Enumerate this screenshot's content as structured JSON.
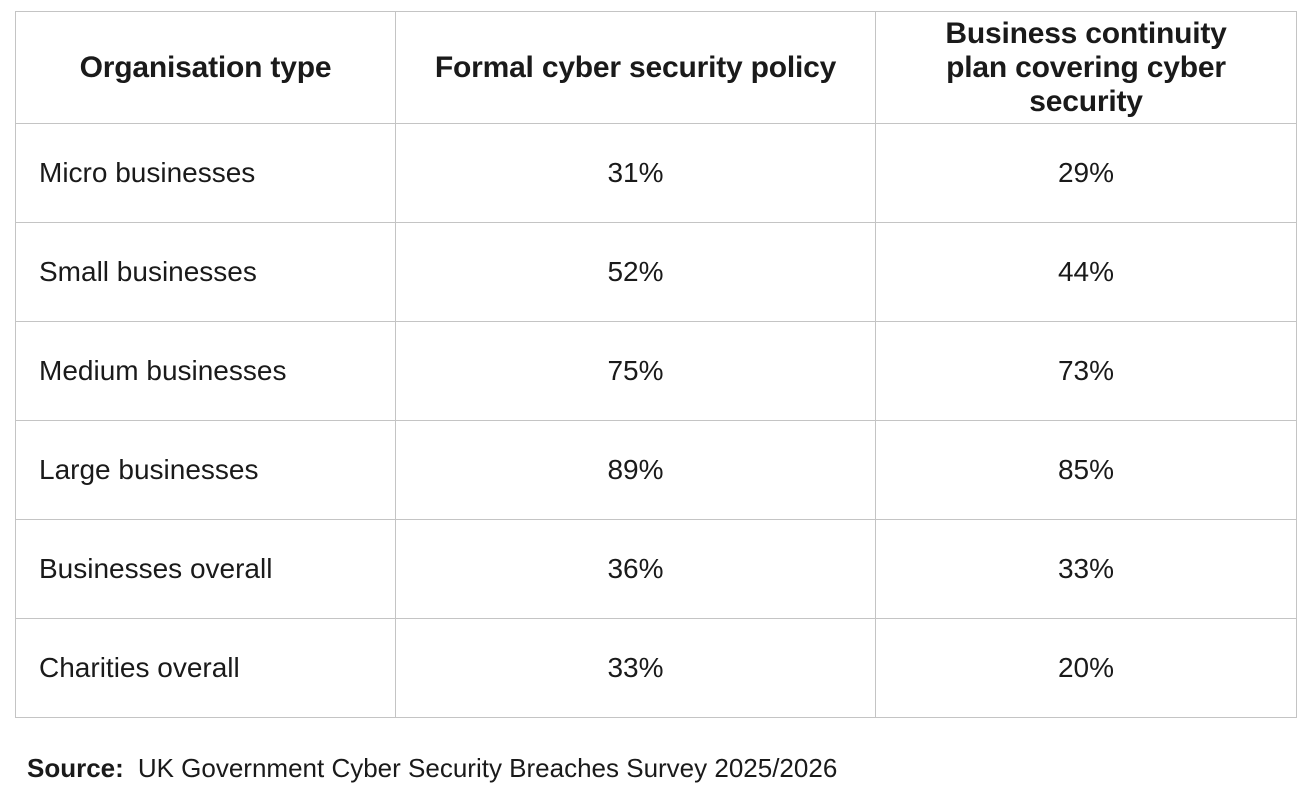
{
  "table": {
    "headers": [
      "Organisation type",
      "Formal cyber security policy",
      "Business continuity plan covering cyber security"
    ],
    "rows": [
      {
        "organisation_type": "Micro businesses",
        "formal_policy": "31%",
        "continuity_plan": "29%"
      },
      {
        "organisation_type": "Small businesses",
        "formal_policy": "52%",
        "continuity_plan": "44%"
      },
      {
        "organisation_type": "Medium businesses",
        "formal_policy": "75%",
        "continuity_plan": "73%"
      },
      {
        "organisation_type": "Large businesses",
        "formal_policy": "89%",
        "continuity_plan": "85%"
      },
      {
        "organisation_type": "Businesses overall",
        "formal_policy": "36%",
        "continuity_plan": "33%"
      },
      {
        "organisation_type": "Charities overall",
        "formal_policy": "33%",
        "continuity_plan": "20%"
      }
    ]
  },
  "source": {
    "label": "Source:",
    "text": "UK Government Cyber Security Breaches Survey 2025/2026"
  },
  "colors": {
    "border": "#c4c4c4",
    "text": "#1a1a1a",
    "background": "#ffffff"
  }
}
